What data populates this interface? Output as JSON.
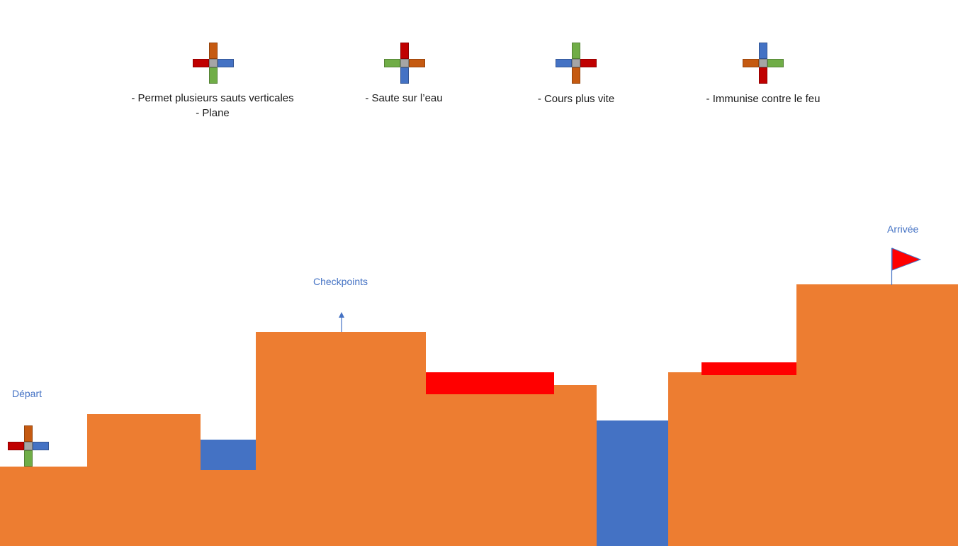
{
  "colors": {
    "ground": "#ed7d31",
    "water": "#4472c4",
    "fire": "#ff0000",
    "label_blue": "#4472c4",
    "cross_red": "#c00000",
    "cross_brown": "#c55a11",
    "cross_blue": "#4472c4",
    "cross_green": "#70ad47",
    "cross_gray": "#a5a5a5"
  },
  "powerups": [
    {
      "icon": "cross-brown-top-icon",
      "arms": {
        "top": "#c55a11",
        "right": "#4472c4",
        "bottom": "#70ad47",
        "left": "#c00000"
      },
      "lines": [
        "- Permet plusieurs sauts verticales",
        "- Plane"
      ]
    },
    {
      "icon": "cross-red-top-icon",
      "arms": {
        "top": "#c00000",
        "right": "#c55a11",
        "bottom": "#4472c4",
        "left": "#70ad47"
      },
      "lines": [
        "- Saute sur l’eau"
      ]
    },
    {
      "icon": "cross-green-top-icon",
      "arms": {
        "top": "#70ad47",
        "right": "#c00000",
        "bottom": "#c55a11",
        "left": "#4472c4"
      },
      "lines": [
        "- Cours plus vite"
      ]
    },
    {
      "icon": "cross-blue-top-icon",
      "arms": {
        "top": "#4472c4",
        "right": "#70ad47",
        "bottom": "#c00000",
        "left": "#c55a11"
      },
      "lines": [
        "- Immunise contre le feu"
      ]
    }
  ],
  "player": {
    "icon": "player-cross-icon",
    "arms": {
      "top": "#c55a11",
      "right": "#4472c4",
      "bottom": "#70ad47",
      "left": "#c00000"
    }
  },
  "labels": {
    "start": "Départ",
    "checkpoints": "Checkpoints",
    "finish": "Arrivée"
  },
  "icons": {
    "checkpoint": "checkpoint-arrow-icon",
    "finish": "finish-flag-icon"
  }
}
